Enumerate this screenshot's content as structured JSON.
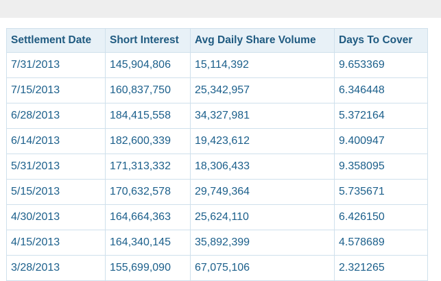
{
  "table": {
    "headers": [
      "Settlement Date",
      "Short Interest",
      "Avg Daily Share Volume",
      "Days To Cover"
    ],
    "rows": [
      [
        "7/31/2013",
        "145,904,806",
        "15,114,392",
        "9.653369"
      ],
      [
        "7/15/2013",
        "160,837,750",
        "25,342,957",
        "6.346448"
      ],
      [
        "6/28/2013",
        "184,415,558",
        "34,327,981",
        "5.372164"
      ],
      [
        "6/14/2013",
        "182,600,339",
        "19,423,612",
        "9.400947"
      ],
      [
        "5/31/2013",
        "171,313,332",
        "18,306,433",
        "9.358095"
      ],
      [
        "5/15/2013",
        "170,632,578",
        "29,749,364",
        "5.735671"
      ],
      [
        "4/30/2013",
        "164,664,363",
        "25,624,110",
        "6.426150"
      ],
      [
        "4/15/2013",
        "164,340,145",
        "35,892,399",
        "4.578689"
      ],
      [
        "3/28/2013",
        "155,699,090",
        "67,075,106",
        "2.321265"
      ]
    ]
  },
  "colors": {
    "header_bg": "#e8f1f7",
    "header_text": "#1f5a80",
    "cell_text": "#1b5f8b",
    "border": "#cfe0ec",
    "top_bar": "#eeeeee"
  }
}
